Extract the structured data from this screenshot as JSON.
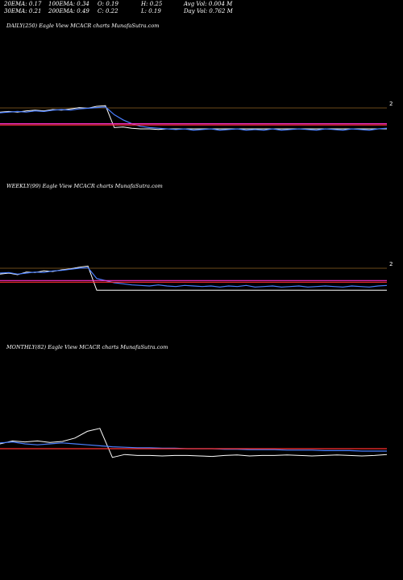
{
  "header": {
    "ema20": "20EMA: 0.17",
    "ema100": "100EMA: 0.34",
    "open": "O: 0.19",
    "high": "H: 0.25",
    "avg_vol": "Avg Vol: 0.004 M",
    "ema30": "30EMA: 0.21",
    "ema200": "200EMA: 0.49",
    "close": "C: 0.22",
    "low": "L: 0.19",
    "day_vol": "Day Vol: 0.762  M"
  },
  "panels": [
    {
      "label": "DAILY(250) Eagle   View  MCACR charts MunafaSutra.com",
      "axis_tick": "2"
    },
    {
      "label": "WEEKLY(99) Eagle   View  MCACR charts MunafaSutra.com",
      "axis_tick": "2"
    },
    {
      "label": "MONTHLY(82) Eagle   View  MCACR charts MunafaSutra.com",
      "axis_tick": ""
    }
  ],
  "colors": {
    "background": "#000000",
    "price": "#ffffff",
    "ema_blue": "#4a7fff",
    "ema_magenta": "#ff2fd0",
    "ema_red": "#ff3030",
    "divider": "#6b4a1a"
  },
  "chart_data": [
    {
      "type": "line",
      "title": "DAILY(250) Eagle   View  MCACR charts MunafaSutra.com",
      "tick_labels": [
        "2"
      ],
      "series": [
        {
          "color": "#ffffff",
          "values": [
            1.86,
            1.87,
            1.86,
            1.88,
            1.89,
            1.88,
            1.9,
            1.89,
            1.91,
            1.93,
            1.92,
            1.95,
            1.96,
            1.62,
            1.63,
            1.61,
            1.6,
            1.6,
            1.59,
            1.6,
            1.6,
            1.6,
            1.6,
            1.6,
            1.6,
            1.6,
            1.6,
            1.6,
            1.6,
            1.6,
            1.6,
            1.6,
            1.6,
            1.6,
            1.6,
            1.6,
            1.6,
            1.6,
            1.6,
            1.6,
            1.6,
            1.6,
            1.6,
            1.6,
            1.6
          ]
        },
        {
          "color": "#4a7fff",
          "values": [
            1.85,
            1.86,
            1.87,
            1.86,
            1.88,
            1.87,
            1.89,
            1.9,
            1.89,
            1.91,
            1.92,
            1.93,
            1.94,
            1.82,
            1.74,
            1.68,
            1.64,
            1.62,
            1.61,
            1.6,
            1.59,
            1.6,
            1.58,
            1.59,
            1.6,
            1.58,
            1.59,
            1.6,
            1.58,
            1.59,
            1.58,
            1.6,
            1.58,
            1.59,
            1.6,
            1.59,
            1.58,
            1.6,
            1.59,
            1.58,
            1.6,
            1.59,
            1.58,
            1.6,
            1.61
          ]
        },
        {
          "color": "#ff2fd0",
          "values": [
            1.68,
            1.68,
            1.68,
            1.68,
            1.68,
            1.68,
            1.68,
            1.68,
            1.68,
            1.68,
            1.68,
            1.68,
            1.68,
            1.68,
            1.68,
            1.68,
            1.68,
            1.68,
            1.68,
            1.68,
            1.68,
            1.68,
            1.68,
            1.68,
            1.68,
            1.68,
            1.68,
            1.68,
            1.68,
            1.68,
            1.68,
            1.68,
            1.68,
            1.68,
            1.68,
            1.68,
            1.68,
            1.68,
            1.68,
            1.68,
            1.68,
            1.68,
            1.68,
            1.68,
            1.68
          ]
        },
        {
          "color": "#ff3030",
          "values": [
            1.66,
            1.66,
            1.66,
            1.66,
            1.66,
            1.66,
            1.66,
            1.66,
            1.66,
            1.66,
            1.66,
            1.66,
            1.66,
            1.66,
            1.66,
            1.66,
            1.66,
            1.66,
            1.66,
            1.66,
            1.66,
            1.66,
            1.66,
            1.66,
            1.66,
            1.66,
            1.66,
            1.66,
            1.66,
            1.66,
            1.66,
            1.66,
            1.66,
            1.66,
            1.66,
            1.66,
            1.66,
            1.66,
            1.66,
            1.66,
            1.66,
            1.66,
            1.66,
            1.66,
            1.66
          ]
        }
      ]
    },
    {
      "type": "line",
      "title": "WEEKLY(99) Eagle   View  MCACR charts MunafaSutra.com",
      "tick_labels": [
        "2"
      ],
      "series": [
        {
          "color": "#ffffff",
          "values": [
            1.8,
            1.82,
            1.79,
            1.84,
            1.83,
            1.86,
            1.85,
            1.88,
            1.9,
            1.93,
            1.95,
            1.5,
            1.5,
            1.5,
            1.5,
            1.5,
            1.5,
            1.5,
            1.5,
            1.5,
            1.5,
            1.5,
            1.5,
            1.5,
            1.5,
            1.5,
            1.5,
            1.5,
            1.5,
            1.5,
            1.5,
            1.5,
            1.5,
            1.5,
            1.5,
            1.5,
            1.5,
            1.5,
            1.5,
            1.5,
            1.5,
            1.5,
            1.5,
            1.5,
            1.5
          ]
        },
        {
          "color": "#4a7fff",
          "values": [
            1.82,
            1.83,
            1.8,
            1.82,
            1.84,
            1.83,
            1.86,
            1.87,
            1.89,
            1.91,
            1.92,
            1.72,
            1.68,
            1.64,
            1.62,
            1.6,
            1.59,
            1.58,
            1.6,
            1.58,
            1.57,
            1.59,
            1.58,
            1.57,
            1.58,
            1.56,
            1.58,
            1.57,
            1.59,
            1.56,
            1.57,
            1.58,
            1.56,
            1.57,
            1.58,
            1.56,
            1.57,
            1.58,
            1.57,
            1.56,
            1.58,
            1.57,
            1.56,
            1.58,
            1.59
          ]
        },
        {
          "color": "#ff2fd0",
          "values": [
            1.68,
            1.68,
            1.68,
            1.68,
            1.68,
            1.68,
            1.68,
            1.68,
            1.68,
            1.68,
            1.68,
            1.68,
            1.68,
            1.68,
            1.68,
            1.68,
            1.68,
            1.68,
            1.68,
            1.68,
            1.68,
            1.68,
            1.68,
            1.68,
            1.68,
            1.68,
            1.68,
            1.68,
            1.68,
            1.68,
            1.68,
            1.68,
            1.68,
            1.68,
            1.68,
            1.68,
            1.68,
            1.68,
            1.68,
            1.68,
            1.68,
            1.68,
            1.68,
            1.68,
            1.68
          ]
        },
        {
          "color": "#ff3030",
          "values": [
            1.65,
            1.65,
            1.65,
            1.65,
            1.65,
            1.65,
            1.65,
            1.65,
            1.65,
            1.65,
            1.65,
            1.65,
            1.65,
            1.65,
            1.65,
            1.65,
            1.65,
            1.65,
            1.65,
            1.65,
            1.65,
            1.65,
            1.65,
            1.65,
            1.65,
            1.65,
            1.65,
            1.65,
            1.65,
            1.65,
            1.65,
            1.65,
            1.65,
            1.65,
            1.65,
            1.65,
            1.65,
            1.65,
            1.65,
            1.65,
            1.65,
            1.65,
            1.65,
            1.65,
            1.65
          ]
        }
      ]
    },
    {
      "type": "line",
      "title": "MONTHLY(82) Eagle   View  MCACR charts MunafaSutra.com",
      "tick_labels": [],
      "series": [
        {
          "color": "#ffffff",
          "values": [
            1.6,
            1.66,
            1.64,
            1.66,
            1.63,
            1.65,
            1.72,
            1.86,
            1.92,
            1.32,
            1.38,
            1.36,
            1.36,
            1.35,
            1.36,
            1.36,
            1.35,
            1.34,
            1.36,
            1.37,
            1.35,
            1.36,
            1.36,
            1.37,
            1.36,
            1.35,
            1.36,
            1.37,
            1.36,
            1.35,
            1.36,
            1.38
          ]
        },
        {
          "color": "#4a7fff",
          "values": [
            1.62,
            1.64,
            1.6,
            1.58,
            1.6,
            1.62,
            1.6,
            1.58,
            1.56,
            1.54,
            1.53,
            1.52,
            1.52,
            1.51,
            1.51,
            1.5,
            1.5,
            1.5,
            1.49,
            1.49,
            1.48,
            1.48,
            1.48,
            1.47,
            1.47,
            1.47,
            1.46,
            1.46,
            1.46,
            1.45,
            1.45,
            1.45
          ]
        },
        {
          "color": "#ff3030",
          "values": [
            1.5,
            1.5,
            1.5,
            1.5,
            1.5,
            1.5,
            1.5,
            1.5,
            1.5,
            1.5,
            1.5,
            1.5,
            1.5,
            1.5,
            1.5,
            1.5,
            1.5,
            1.5,
            1.5,
            1.5,
            1.5,
            1.5,
            1.5,
            1.5,
            1.5,
            1.5,
            1.5,
            1.5,
            1.5,
            1.5,
            1.5,
            1.5
          ]
        }
      ]
    }
  ]
}
